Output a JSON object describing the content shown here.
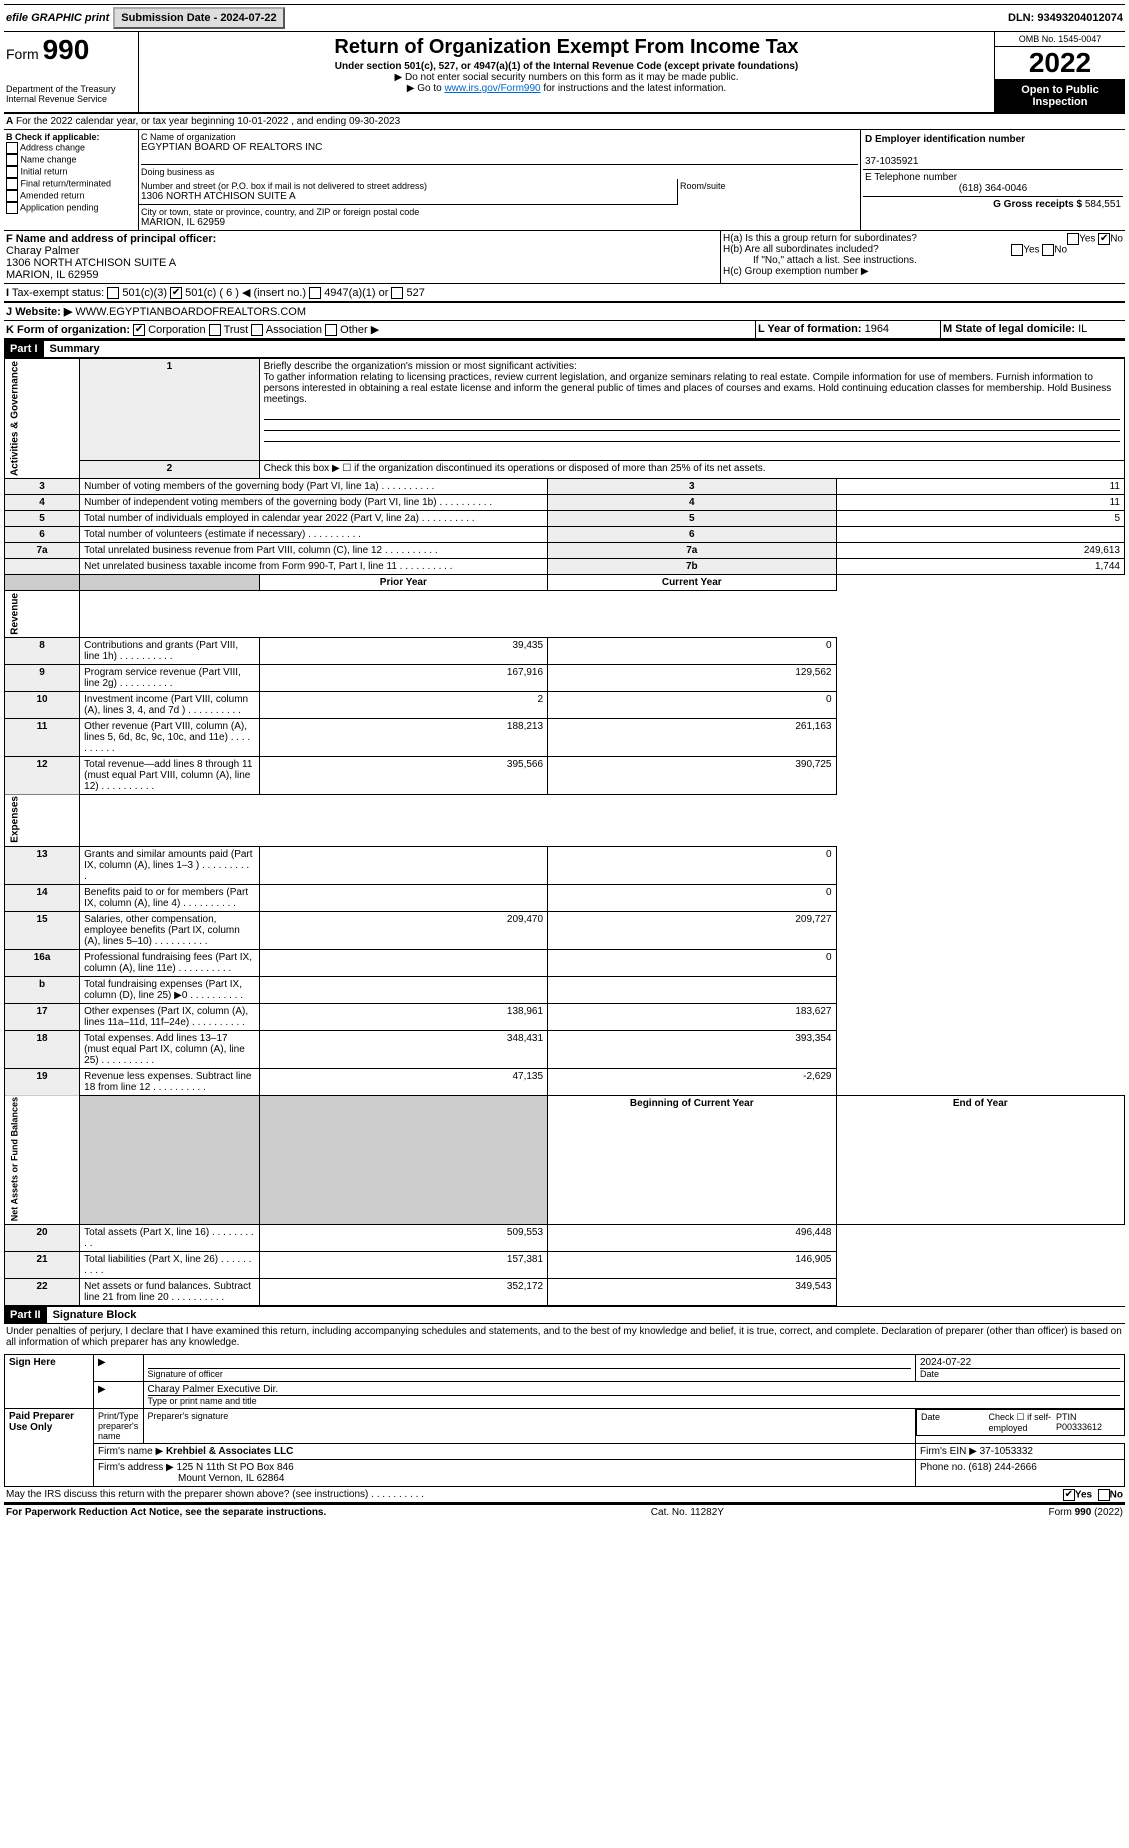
{
  "topbar": {
    "efile": "efile GRAPHIC print",
    "submit_btn": "Submission Date - 2024-07-22",
    "dln": "DLN: 93493204012074"
  },
  "header": {
    "form_label": "Form",
    "form_num": "990",
    "dept": "Department of the Treasury",
    "irs": "Internal Revenue Service",
    "title": "Return of Organization Exempt From Income Tax",
    "sub": "Under section 501(c), 527, or 4947(a)(1) of the Internal Revenue Code (except private foundations)",
    "note1": "▶ Do not enter social security numbers on this form as it may be made public.",
    "note2_pre": "▶ Go to ",
    "note2_link": "www.irs.gov/Form990",
    "note2_post": " for instructions and the latest information.",
    "omb": "OMB No. 1545-0047",
    "year": "2022",
    "inspect": "Open to Public Inspection"
  },
  "rowA": {
    "text": "For the 2022 calendar year, or tax year beginning 10-01-2022    , and ending 09-30-2023"
  },
  "boxB": {
    "label": "B Check if applicable:",
    "items": [
      "Address change",
      "Name change",
      "Initial return",
      "Final return/terminated",
      "Amended return",
      "Application pending"
    ]
  },
  "boxC": {
    "name_lbl": "C Name of organization",
    "name": "EGYPTIAN BOARD OF REALTORS INC",
    "dba_lbl": "Doing business as",
    "dba": "",
    "addr_lbl": "Number and street (or P.O. box if mail is not delivered to street address)",
    "room_lbl": "Room/suite",
    "addr": "1306 NORTH ATCHISON SUITE A",
    "city_lbl": "City or town, state or province, country, and ZIP or foreign postal code",
    "city": "MARION, IL  62959"
  },
  "boxD": {
    "lbl": "D Employer identification number",
    "val": "37-1035921"
  },
  "boxE": {
    "lbl": "E Telephone number",
    "val": "(618) 364-0046"
  },
  "boxG": {
    "lbl": "G Gross receipts $",
    "val": "584,551"
  },
  "boxF": {
    "lbl": "F Name and address of principal officer:",
    "name": "Charay Palmer",
    "addr": "1306 NORTH ATCHISON SUITE A",
    "city": "MARION, IL  62959"
  },
  "boxH": {
    "a": "H(a)  Is this a group return for subordinates?",
    "b": "H(b)  Are all subordinates included?",
    "b_note": "If \"No,\" attach a list. See instructions.",
    "c": "H(c)  Group exemption number ▶",
    "yes": "Yes",
    "no": "No"
  },
  "boxI": {
    "lbl": "Tax-exempt status:",
    "c3": "501(c)(3)",
    "c": "501(c) ( 6 ) ◀ (insert no.)",
    "a1": "4947(a)(1) or",
    "527": "527"
  },
  "boxJ": {
    "lbl": "Website: ▶",
    "val": "WWW.EGYPTIANBOARDOFREALTORS.COM"
  },
  "boxK": {
    "lbl": "K Form of organization:",
    "corp": "Corporation",
    "trust": "Trust",
    "assoc": "Association",
    "other": "Other ▶"
  },
  "boxL": {
    "lbl": "L Year of formation:",
    "val": "1964"
  },
  "boxM": {
    "lbl": "M State of legal domicile:",
    "val": "IL"
  },
  "part1": {
    "hdr": "Part I",
    "title": "Summary"
  },
  "summary": {
    "q1": "Briefly describe the organization's mission or most significant activities:",
    "mission": "To gather information relating to licensing practices, review current legislation, and organize seminars relating to real estate. Compile information for use of members. Furnish information to persons interested in obtaining a real estate license and inform the general public of times and places of courses and exams. Hold continuing education classes for membership. Hold Business meetings.",
    "q2": "Check this box ▶ ☐ if the organization discontinued its operations or disposed of more than 25% of its net assets.",
    "rows_ag": [
      {
        "n": "3",
        "t": "Number of voting members of the governing body (Part VI, line 1a)",
        "b": "3",
        "v": "11"
      },
      {
        "n": "4",
        "t": "Number of independent voting members of the governing body (Part VI, line 1b)",
        "b": "4",
        "v": "11"
      },
      {
        "n": "5",
        "t": "Total number of individuals employed in calendar year 2022 (Part V, line 2a)",
        "b": "5",
        "v": "5"
      },
      {
        "n": "6",
        "t": "Total number of volunteers (estimate if necessary)",
        "b": "6",
        "v": ""
      },
      {
        "n": "7a",
        "t": "Total unrelated business revenue from Part VIII, column (C), line 12",
        "b": "7a",
        "v": "249,613"
      },
      {
        "n": "",
        "t": "Net unrelated business taxable income from Form 990-T, Part I, line 11",
        "b": "7b",
        "v": "1,744"
      }
    ],
    "hdr_prior": "Prior Year",
    "hdr_curr": "Current Year",
    "rows_rev": [
      {
        "n": "8",
        "t": "Contributions and grants (Part VIII, line 1h)",
        "p": "39,435",
        "c": "0"
      },
      {
        "n": "9",
        "t": "Program service revenue (Part VIII, line 2g)",
        "p": "167,916",
        "c": "129,562"
      },
      {
        "n": "10",
        "t": "Investment income (Part VIII, column (A), lines 3, 4, and 7d )",
        "p": "2",
        "c": "0"
      },
      {
        "n": "11",
        "t": "Other revenue (Part VIII, column (A), lines 5, 6d, 8c, 9c, 10c, and 11e)",
        "p": "188,213",
        "c": "261,163"
      },
      {
        "n": "12",
        "t": "Total revenue—add lines 8 through 11 (must equal Part VIII, column (A), line 12)",
        "p": "395,566",
        "c": "390,725"
      }
    ],
    "rows_exp": [
      {
        "n": "13",
        "t": "Grants and similar amounts paid (Part IX, column (A), lines 1–3 )",
        "p": "",
        "c": "0"
      },
      {
        "n": "14",
        "t": "Benefits paid to or for members (Part IX, column (A), line 4)",
        "p": "",
        "c": "0"
      },
      {
        "n": "15",
        "t": "Salaries, other compensation, employee benefits (Part IX, column (A), lines 5–10)",
        "p": "209,470",
        "c": "209,727"
      },
      {
        "n": "16a",
        "t": "Professional fundraising fees (Part IX, column (A), line 11e)",
        "p": "",
        "c": "0"
      },
      {
        "n": "b",
        "t": "Total fundraising expenses (Part IX, column (D), line 25) ▶0",
        "p": null,
        "c": null
      },
      {
        "n": "17",
        "t": "Other expenses (Part IX, column (A), lines 11a–11d, 11f–24e)",
        "p": "138,961",
        "c": "183,627"
      },
      {
        "n": "18",
        "t": "Total expenses. Add lines 13–17 (must equal Part IX, column (A), line 25)",
        "p": "348,431",
        "c": "393,354"
      },
      {
        "n": "19",
        "t": "Revenue less expenses. Subtract line 18 from line 12",
        "p": "47,135",
        "c": "-2,629"
      }
    ],
    "hdr_beg": "Beginning of Current Year",
    "hdr_end": "End of Year",
    "rows_net": [
      {
        "n": "20",
        "t": "Total assets (Part X, line 16)",
        "p": "509,553",
        "c": "496,448"
      },
      {
        "n": "21",
        "t": "Total liabilities (Part X, line 26)",
        "p": "157,381",
        "c": "146,905"
      },
      {
        "n": "22",
        "t": "Net assets or fund balances. Subtract line 21 from line 20",
        "p": "352,172",
        "c": "349,543"
      }
    ],
    "tabs": {
      "ag": "Activities & Governance",
      "rev": "Revenue",
      "exp": "Expenses",
      "net": "Net Assets or Fund Balances"
    }
  },
  "part2": {
    "hdr": "Part II",
    "title": "Signature Block",
    "decl": "Under penalties of perjury, I declare that I have examined this return, including accompanying schedules and statements, and to the best of my knowledge and belief, it is true, correct, and complete. Declaration of preparer (other than officer) is based on all information of which preparer has any knowledge."
  },
  "sign": {
    "here": "Sign Here",
    "sig_lbl": "Signature of officer",
    "date_lbl": "Date",
    "date": "2024-07-22",
    "name": "Charay Palmer  Executive Dir.",
    "name_lbl": "Type or print name and title"
  },
  "paid": {
    "lbl": "Paid Preparer Use Only",
    "h1": "Print/Type preparer's name",
    "h2": "Preparer's signature",
    "h3": "Date",
    "h4_pre": "Check ☐ if self-employed",
    "h5": "PTIN",
    "ptin": "P00333612",
    "firm_lbl": "Firm's name   ▶",
    "firm": "Krehbiel & Associates LLC",
    "ein_lbl": "Firm's EIN ▶",
    "ein": "37-1053332",
    "addr_lbl": "Firm's address ▶",
    "addr": "125 N 11th St PO Box 846",
    "city": "Mount Vernon, IL  62864",
    "phone_lbl": "Phone no.",
    "phone": "(618) 244-2666"
  },
  "discuss": {
    "q": "May the IRS discuss this return with the preparer shown above? (see instructions)",
    "yes": "Yes",
    "no": "No"
  },
  "footer": {
    "pra": "For Paperwork Reduction Act Notice, see the separate instructions.",
    "cat": "Cat. No. 11282Y",
    "form": "Form 990 (2022)"
  }
}
